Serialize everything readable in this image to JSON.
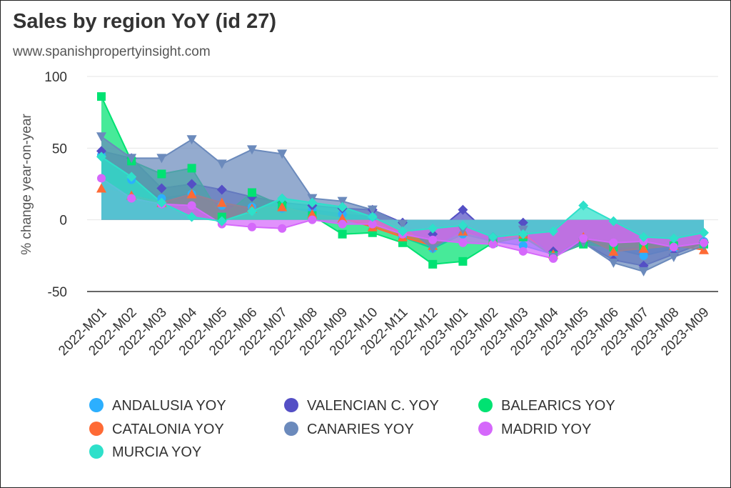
{
  "title": "Sales by region YoY (id 27)",
  "subtitle": "www.spanishpropertyinsight.com",
  "chart_data": {
    "type": "area",
    "title": "Sales by region YoY (id 27)",
    "ylabel": "% change year-on-year",
    "ylim": [
      -50,
      100
    ],
    "yticks": [
      100,
      50,
      0,
      -50
    ],
    "grid": true,
    "legend_position": "bottom",
    "categories": [
      "2022-M01",
      "2022-M02",
      "2022-M03",
      "2022-M04",
      "2022-M05",
      "2022-M06",
      "2022-M07",
      "2022-M08",
      "2022-M09",
      "2022-M10",
      "2022-M11",
      "2022-M12",
      "2023-M01",
      "2023-M02",
      "2023-M03",
      "2023-M04",
      "2023-M05",
      "2023-M06",
      "2023-M07",
      "2023-M08",
      "2023-M09"
    ],
    "series": [
      {
        "name": "ANDALUSIA YOY",
        "color": "#2caffe",
        "marker": "circle",
        "values": [
          45,
          28,
          15,
          18,
          10,
          9,
          8,
          7,
          4,
          2,
          -12,
          -20,
          -10,
          -15,
          -18,
          -24,
          -14,
          -20,
          -25,
          -20,
          -15
        ]
      },
      {
        "name": "VALENCIAN C. YOY",
        "color": "#544fc5",
        "marker": "diamond",
        "values": [
          48,
          43,
          22,
          25,
          21,
          16,
          12,
          10,
          8,
          7,
          -2,
          -10,
          7,
          -12,
          -2,
          -22,
          -16,
          -28,
          -32,
          -24,
          -16
        ]
      },
      {
        "name": "BALEARICS YOY",
        "color": "#00e272",
        "marker": "square",
        "values": [
          86,
          41,
          32,
          36,
          2,
          19,
          10,
          3,
          -10,
          -9,
          -16,
          -31,
          -29,
          -16,
          -12,
          -25,
          -17,
          -19,
          -18,
          -18,
          -17
        ]
      },
      {
        "name": "CATALONIA YOY",
        "color": "#fe6a35",
        "marker": "triangle",
        "values": [
          22,
          17,
          12,
          18,
          12,
          8,
          9,
          4,
          1,
          -5,
          -12,
          -18,
          -8,
          -14,
          -10,
          -24,
          -12,
          -22,
          -20,
          -18,
          -21
        ]
      },
      {
        "name": "CANARIES YOY",
        "color": "#6b8abc",
        "marker": "triangle-down",
        "values": [
          58,
          43,
          43,
          56,
          39,
          49,
          46,
          15,
          13,
          7,
          -3,
          -20,
          -7,
          -15,
          -7,
          -26,
          -16,
          -30,
          -36,
          -26,
          -18
        ]
      },
      {
        "name": "MADRID YOY",
        "color": "#d568fb",
        "marker": "circle",
        "values": [
          29,
          15,
          11,
          10,
          -3,
          -5,
          -6,
          0,
          -3,
          -3,
          -10,
          -14,
          -16,
          -17,
          -22,
          -27,
          -13,
          -16,
          -15,
          -19,
          -16
        ]
      },
      {
        "name": "MURCIA YOY",
        "color": "#2ee0ca",
        "marker": "diamond",
        "values": [
          44,
          30,
          12,
          2,
          -1,
          6,
          15,
          12,
          9,
          2,
          -8,
          -6,
          -4,
          -12,
          -10,
          -8,
          10,
          -1,
          -12,
          -13,
          -9
        ]
      }
    ]
  }
}
